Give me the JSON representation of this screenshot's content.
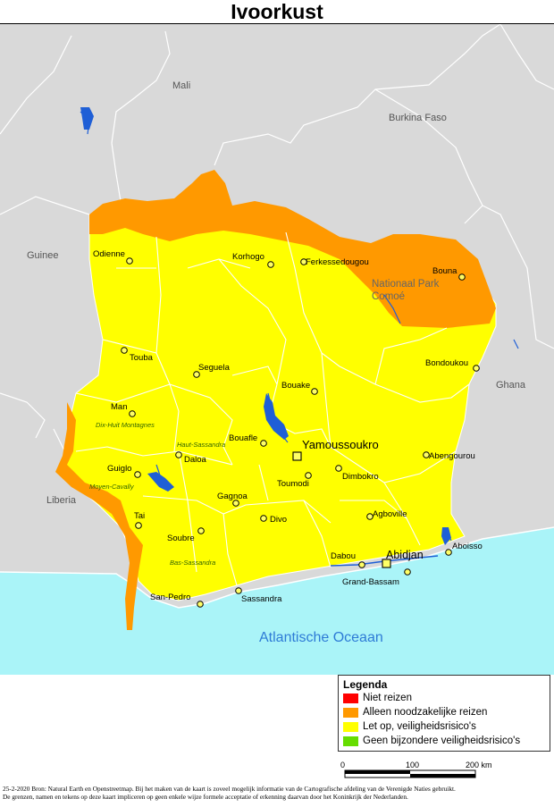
{
  "title": "Ivoorkust",
  "colors": {
    "neighbor_land": "#d9d9d9",
    "ocean": "#aaf4f8",
    "yellow": "#ffff00",
    "orange": "#ff9900",
    "red": "#ff0000",
    "green": "#66dd00",
    "rivers": "#1f5fd6"
  },
  "map": {
    "countries": [
      "Mali",
      "Burkina Faso",
      "Guinee",
      "Ghana",
      "Liberia"
    ],
    "ocean_label": "Atlantische Oceaan",
    "capital": "Yamoussoukro",
    "major_city": "Abidjan",
    "cities": [
      "Odienne",
      "Korhogo",
      "Ferkessedougou",
      "Bouna",
      "Touba",
      "Seguela",
      "Bondoukou",
      "Bouake",
      "Man",
      "Bouafle",
      "Abengourou",
      "Guiglo",
      "Daloa",
      "Dimbokro",
      "Toumodi",
      "Gagnoa",
      "Agboville",
      "Tai",
      "Divo",
      "Aboisso",
      "Soubre",
      "Dabou",
      "Grand-Bassam",
      "San-Pedro",
      "Sassandra"
    ],
    "parks": [
      "Nationaal Park",
      "Comoé"
    ],
    "regions": [
      "Dix-Huit Montagnes",
      "Haut-Sassandra",
      "Moyen-Cavally",
      "Bas-Sassandra"
    ]
  },
  "legend": {
    "title": "Legenda",
    "items": [
      {
        "label": "Niet reizen",
        "color": "#ff0000"
      },
      {
        "label": "Alleen noodzakelijke reizen",
        "color": "#ff9900"
      },
      {
        "label": "Let op, veiligheidsrisico's",
        "color": "#ffff00"
      },
      {
        "label": "Geen bijzondere veiligheidsrisico's",
        "color": "#66dd00"
      }
    ]
  },
  "scale": {
    "ticks": [
      "0",
      "100",
      "200 km"
    ]
  },
  "footer": {
    "line1": "25-2-2020 Bron: Natural Earth en Openstreetmap. Bij het maken van de kaart is zoveel mogelijk informatie van de Cartografische afdeling van de Verenigde Naties gebruikt.",
    "line2": "De grenzen, namen en tekens op deze kaart impliceren op geen enkele wijze formele acceptatie of erkenning daarvan door het Koninkrijk der Nederlanden."
  }
}
